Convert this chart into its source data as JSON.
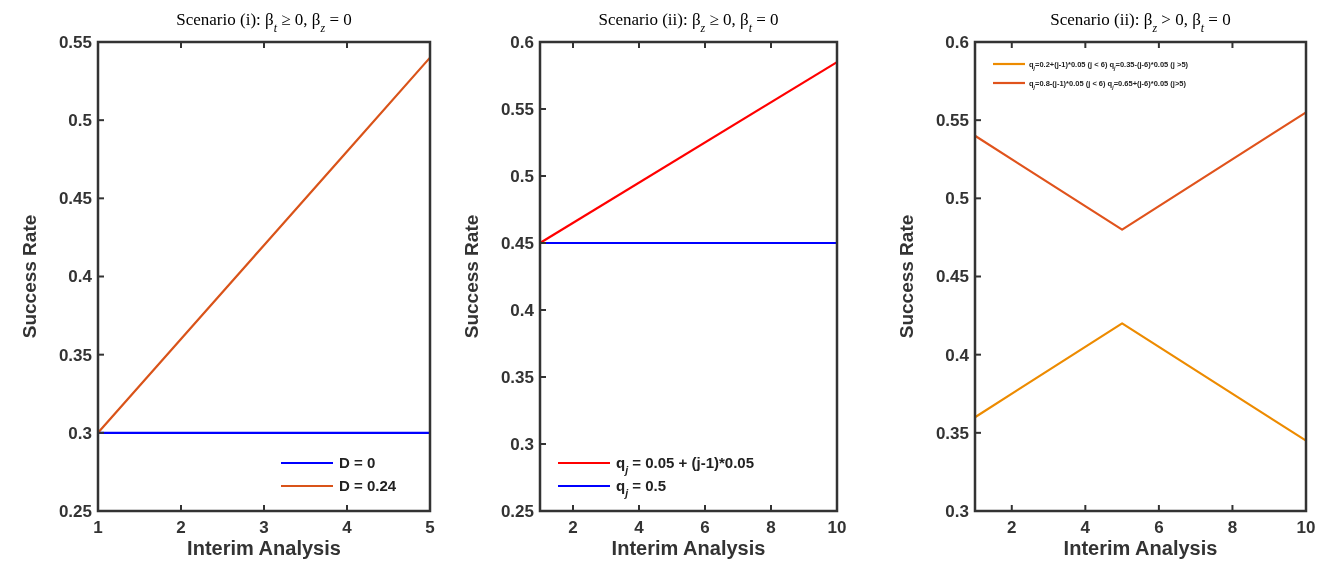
{
  "chart_data": [
    {
      "type": "line",
      "title": "Scenario (i): β$_{t}$ ≥ 0, β$_{z}$ = 0",
      "xlabel": "Interim Analysis",
      "ylabel": "Success Rate",
      "x": [
        1,
        2,
        3,
        4,
        5
      ],
      "xlim": [
        1,
        5
      ],
      "xticks": [
        1,
        2,
        3,
        4,
        5
      ],
      "ylim": [
        0.25,
        0.55
      ],
      "yticks": [
        0.25,
        0.3,
        0.35,
        0.4,
        0.45,
        0.5,
        0.55
      ],
      "legend": "bottom right",
      "grid": false,
      "series": [
        {
          "name": "D = 0",
          "color": "#0000ff",
          "values": [
            0.3,
            0.3,
            0.3,
            0.3,
            0.3
          ]
        },
        {
          "name": "D = 0.24",
          "color": "#d95319",
          "values": [
            0.3,
            0.36,
            0.42,
            0.48,
            0.54
          ]
        }
      ]
    },
    {
      "type": "line",
      "title": "Scenario (ii): β$_{z}$ ≥ 0, β$_{t}$ = 0",
      "xlabel": "Interim Analysis",
      "ylabel": "Success Rate",
      "x": [
        1,
        10
      ],
      "xlim": [
        1,
        10
      ],
      "xticks": [
        2,
        4,
        6,
        8,
        10
      ],
      "ylim": [
        0.25,
        0.6
      ],
      "yticks": [
        0.25,
        0.3,
        0.35,
        0.4,
        0.45,
        0.5,
        0.55,
        0.6
      ],
      "legend": "bottom left",
      "grid": false,
      "series": [
        {
          "name": "q$_{j}$ = 0.05 + (j-1)*0.05",
          "color": "#ff0000",
          "values": [
            0.45,
            0.585
          ]
        },
        {
          "name": "q$_{j}$ = 0.5",
          "color": "#0000ff",
          "values": [
            0.45,
            0.45
          ]
        }
      ]
    },
    {
      "type": "line",
      "title": "Scenario (ii): β$_{z}$ > 0, β$_{t}$ = 0",
      "xlabel": "Interim Analysis",
      "ylabel": "Success Rate",
      "x": [
        1,
        5,
        10
      ],
      "xlim": [
        1,
        10
      ],
      "xticks": [
        2,
        4,
        6,
        8,
        10
      ],
      "ylim": [
        0.3,
        0.6
      ],
      "yticks": [
        0.3,
        0.35,
        0.4,
        0.45,
        0.5,
        0.55,
        0.6
      ],
      "legend": "top left",
      "grid": false,
      "series": [
        {
          "name": "q$_{j}$=0.2+(j-1)*0.05 (j < 6) q$_{j}$=0.35-(j-6)*0.05 (j >5)",
          "color": "#ed8b00",
          "values": [
            0.36,
            0.42,
            0.345
          ]
        },
        {
          "name": "q$_{j}$=0.8-(j-1)*0.05 (j < 6) q$_{j}$=0.65+(j-6)*0.05 (j>5)",
          "color": "#e0531c",
          "values": [
            0.54,
            0.48,
            0.555
          ]
        }
      ]
    }
  ]
}
